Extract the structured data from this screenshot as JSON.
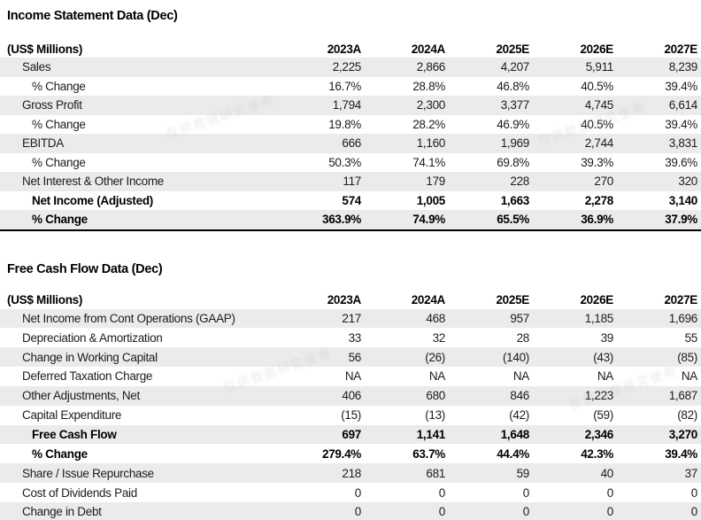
{
  "watermark": {
    "text": "仅供数据研究使用"
  },
  "tables": [
    {
      "title": "Income Statement Data (Dec)",
      "unit_label": "(US$ Millions)",
      "columns": [
        "2023A",
        "2024A",
        "2025E",
        "2026E",
        "2027E"
      ],
      "rows": [
        {
          "label": "Sales",
          "indent": 1,
          "bold": false,
          "values": [
            "2,225",
            "2,866",
            "4,207",
            "5,911",
            "8,239"
          ]
        },
        {
          "label": "% Change",
          "indent": 2,
          "bold": false,
          "values": [
            "16.7%",
            "28.8%",
            "46.8%",
            "40.5%",
            "39.4%"
          ]
        },
        {
          "label": "Gross Profit",
          "indent": 1,
          "bold": false,
          "values": [
            "1,794",
            "2,300",
            "3,377",
            "4,745",
            "6,614"
          ]
        },
        {
          "label": "% Change",
          "indent": 2,
          "bold": false,
          "values": [
            "19.8%",
            "28.2%",
            "46.9%",
            "40.5%",
            "39.4%"
          ]
        },
        {
          "label": "EBITDA",
          "indent": 1,
          "bold": false,
          "values": [
            "666",
            "1,160",
            "1,969",
            "2,744",
            "3,831"
          ]
        },
        {
          "label": "% Change",
          "indent": 2,
          "bold": false,
          "values": [
            "50.3%",
            "74.1%",
            "69.8%",
            "39.3%",
            "39.6%"
          ]
        },
        {
          "label": "Net Interest & Other Income",
          "indent": 1,
          "bold": false,
          "values": [
            "117",
            "179",
            "228",
            "270",
            "320"
          ]
        },
        {
          "label": "Net Income (Adjusted)",
          "indent": 2,
          "bold": true,
          "values": [
            "574",
            "1,005",
            "1,663",
            "2,278",
            "3,140"
          ]
        },
        {
          "label": "% Change",
          "indent": 2,
          "bold": true,
          "values": [
            "363.9%",
            "74.9%",
            "65.5%",
            "36.9%",
            "37.9%"
          ]
        }
      ]
    },
    {
      "title": "Free Cash Flow Data (Dec)",
      "unit_label": "(US$ Millions)",
      "columns": [
        "2023A",
        "2024A",
        "2025E",
        "2026E",
        "2027E"
      ],
      "rows": [
        {
          "label": "Net Income from Cont Operations (GAAP)",
          "indent": 1,
          "bold": false,
          "values": [
            "217",
            "468",
            "957",
            "1,185",
            "1,696"
          ]
        },
        {
          "label": "Depreciation & Amortization",
          "indent": 1,
          "bold": false,
          "values": [
            "33",
            "32",
            "28",
            "39",
            "55"
          ]
        },
        {
          "label": "Change in Working Capital",
          "indent": 1,
          "bold": false,
          "values": [
            "56",
            "(26)",
            "(140)",
            "(43)",
            "(85)"
          ]
        },
        {
          "label": "Deferred Taxation Charge",
          "indent": 1,
          "bold": false,
          "values": [
            "NA",
            "NA",
            "NA",
            "NA",
            "NA"
          ]
        },
        {
          "label": "Other Adjustments, Net",
          "indent": 1,
          "bold": false,
          "values": [
            "406",
            "680",
            "846",
            "1,223",
            "1,687"
          ]
        },
        {
          "label": "Capital Expenditure",
          "indent": 1,
          "bold": false,
          "values": [
            "(15)",
            "(13)",
            "(42)",
            "(59)",
            "(82)"
          ]
        },
        {
          "label": "Free Cash Flow",
          "indent": 2,
          "bold": true,
          "values": [
            "697",
            "1,141",
            "1,648",
            "2,346",
            "3,270"
          ]
        },
        {
          "label": "% Change",
          "indent": 2,
          "bold": true,
          "values": [
            "279.4%",
            "63.7%",
            "44.4%",
            "42.3%",
            "39.4%"
          ]
        },
        {
          "label": "Share / Issue Repurchase",
          "indent": 1,
          "bold": false,
          "values": [
            "218",
            "681",
            "59",
            "40",
            "37"
          ]
        },
        {
          "label": "Cost of Dividends Paid",
          "indent": 1,
          "bold": false,
          "values": [
            "0",
            "0",
            "0",
            "0",
            "0"
          ]
        },
        {
          "label": "Change in Debt",
          "indent": 1,
          "bold": false,
          "values": [
            "0",
            "0",
            "0",
            "0",
            "0"
          ]
        }
      ]
    }
  ]
}
